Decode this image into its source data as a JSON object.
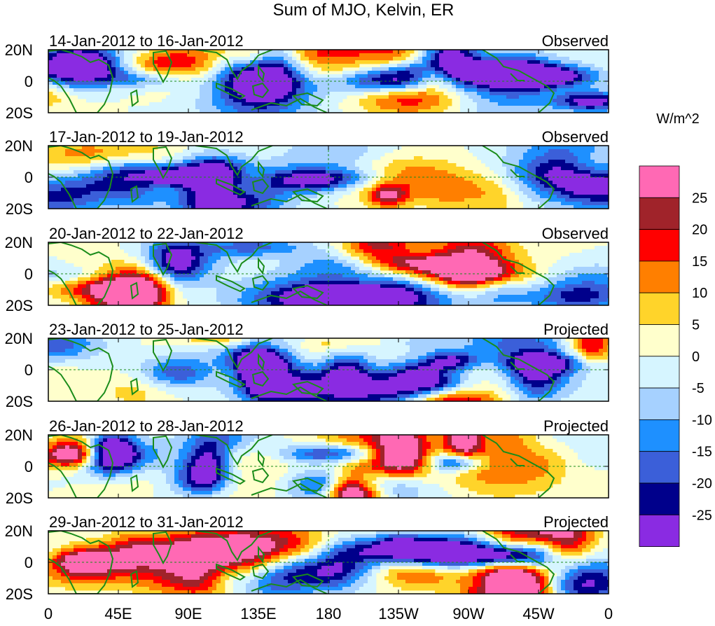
{
  "chart_data": {
    "type": "heatmap",
    "title": "Sum of MJO, Kelvin, ER",
    "units": "W/m^2",
    "x_ticks": [
      "0",
      "45E",
      "90E",
      "135E",
      "180",
      "135W",
      "90W",
      "45W",
      "0"
    ],
    "y_ticks": [
      "20N",
      "0",
      "20S"
    ],
    "colorbar": {
      "levels": [
        "25",
        "20",
        "15",
        "10",
        "5",
        "0",
        "-5",
        "-10",
        "-15",
        "-20",
        "-25"
      ],
      "colors": [
        "#ff69b4",
        "#a0232a",
        "#ff0000",
        "#ff7f00",
        "#ffd42a",
        "#ffffcc",
        "#d6f5ff",
        "#a6d1ff",
        "#1e90ff",
        "#3b5fd9",
        "#00008b",
        "#8a2be2"
      ]
    },
    "panels": [
      {
        "period": "14-Jan-2012 to 16-Jan-2012",
        "type": "Observed"
      },
      {
        "period": "17-Jan-2012 to 19-Jan-2012",
        "type": "Observed"
      },
      {
        "period": "20-Jan-2012 to 22-Jan-2012",
        "type": "Observed"
      },
      {
        "period": "23-Jan-2012 to 25-Jan-2012",
        "type": "Projected"
      },
      {
        "period": "26-Jan-2012 to 28-Jan-2012",
        "type": "Projected"
      },
      {
        "period": "29-Jan-2012 to 31-Jan-2012",
        "type": "Projected"
      }
    ]
  }
}
